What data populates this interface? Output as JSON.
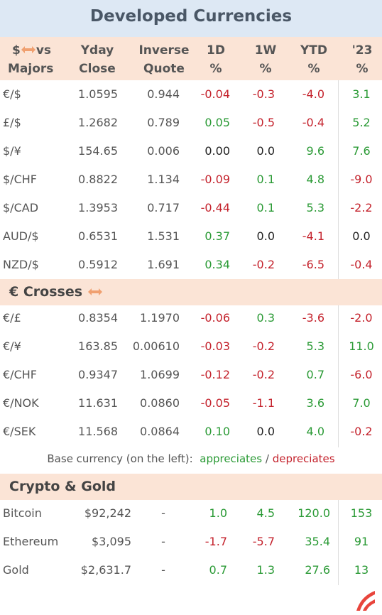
{
  "title": "Developed Currencies",
  "header": {
    "first": {
      "before_icon": "$",
      "after_icon": "vs",
      "line2": "Majors"
    },
    "columns": [
      [
        "Yday",
        "Close"
      ],
      [
        "Inverse",
        "Quote"
      ],
      [
        "1D",
        "%"
      ],
      [
        "1W",
        "%"
      ],
      [
        "YTD",
        "%"
      ],
      [
        "'23",
        "%"
      ]
    ]
  },
  "majors": [
    [
      "€/$",
      "1.0595",
      "0.944",
      "-0.04",
      "-0.3",
      "-4.0",
      "3.1"
    ],
    [
      "£/$",
      "1.2682",
      "0.789",
      "0.05",
      "-0.5",
      "-0.4",
      "5.2"
    ],
    [
      "$/¥",
      "154.65",
      "0.006",
      "0.00",
      "0.0",
      "9.6",
      "7.6"
    ],
    [
      "$/CHF",
      "0.8822",
      "1.134",
      "-0.09",
      "0.1",
      "4.8",
      "-9.0"
    ],
    [
      "$/CAD",
      "1.3953",
      "0.717",
      "-0.44",
      "0.1",
      "5.3",
      "-2.2"
    ],
    [
      "AUD/$",
      "0.6531",
      "1.531",
      "0.37",
      "0.0",
      "-4.1",
      "0.0"
    ],
    [
      "NZD/$",
      "0.5912",
      "1.691",
      "0.34",
      "-0.2",
      "-6.5",
      "-0.4"
    ]
  ],
  "crosses": {
    "title": "€ Crosses",
    "rows": [
      [
        "€/£",
        "0.8354",
        "1.1970",
        "-0.06",
        "0.3",
        "-3.6",
        "-2.0"
      ],
      [
        "€/¥",
        "163.85",
        "0.00610",
        "-0.03",
        "-0.2",
        "5.3",
        "11.0"
      ],
      [
        "€/CHF",
        "0.9347",
        "1.0699",
        "-0.12",
        "-0.2",
        "0.7",
        "-6.0"
      ],
      [
        "€/NOK",
        "11.631",
        "0.0860",
        "-0.05",
        "-1.1",
        "3.6",
        "7.0"
      ],
      [
        "€/SEK",
        "11.568",
        "0.0864",
        "0.10",
        "0.0",
        "4.0",
        "-0.2"
      ]
    ]
  },
  "note": {
    "text": "Base currency (on the left):",
    "appreciates": "appreciates",
    "separator": "/",
    "depreciates": "depreciates"
  },
  "crypto": {
    "title": "Crypto & Gold",
    "rows": [
      [
        "Bitcoin",
        "$92,242",
        "-",
        "1.0",
        "4.5",
        "120.0",
        "153"
      ],
      [
        "Ethereum",
        "$3,095",
        "-",
        "-1.7",
        "-5.7",
        "35.4",
        "91"
      ],
      [
        "Gold",
        "$2,631.7",
        "-",
        "0.7",
        "1.3",
        "27.6",
        "13"
      ]
    ]
  }
}
